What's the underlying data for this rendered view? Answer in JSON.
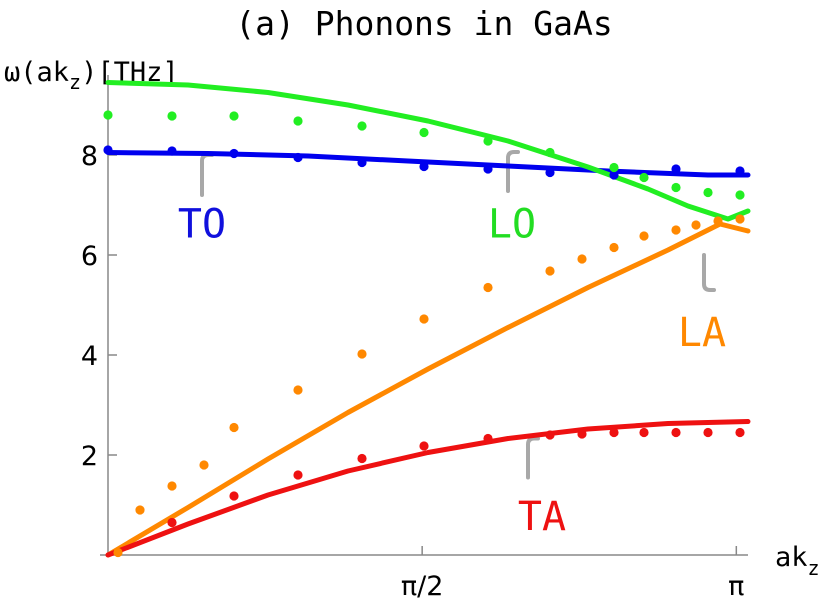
{
  "chart_data": {
    "type": "line",
    "title": "(a) Phonons in GaAs",
    "ylabel": {
      "main": "ω(ak",
      "sub": "z",
      "tail": ")[THz]"
    },
    "xlabel": {
      "main": "ak",
      "sub": "z"
    },
    "xlim": [
      0,
      3.2
    ],
    "ylim": [
      0,
      9.6
    ],
    "x_ticks": [
      {
        "value": 1.5708,
        "label": "π/2"
      },
      {
        "value": 3.1416,
        "label": "π"
      }
    ],
    "y_ticks": [
      {
        "value": 2,
        "label": "2"
      },
      {
        "value": 4,
        "label": "4"
      },
      {
        "value": 6,
        "label": "6"
      },
      {
        "value": 8,
        "label": "8"
      }
    ],
    "grid": false,
    "legend": "none",
    "series": [
      {
        "name": "TO",
        "color": "#0000ee",
        "label_color": "#1010dd",
        "curve": {
          "x": [
            0,
            0.5,
            1.0,
            1.5,
            2.0,
            2.5,
            3.0,
            3.2
          ],
          "y": [
            8.05,
            8.03,
            7.98,
            7.88,
            7.78,
            7.68,
            7.6,
            7.6
          ]
        },
        "points": {
          "x": [
            0,
            0.32,
            0.63,
            0.95,
            1.27,
            1.58,
            1.9,
            2.21,
            2.53,
            2.84,
            3.16
          ],
          "y": [
            8.1,
            8.08,
            8.03,
            7.95,
            7.85,
            7.77,
            7.72,
            7.65,
            7.6,
            7.72,
            7.68
          ]
        },
        "label": {
          "text": "TO",
          "x": 0.47,
          "y": 6.35
        },
        "pointer": {
          "x": 0.47,
          "y_start": 7.2,
          "y_end": 8.0,
          "hook": 0.05
        }
      },
      {
        "name": "LO",
        "color": "#22ee22",
        "label_color": "#22dd22",
        "curve": {
          "x": [
            0,
            0.4,
            0.8,
            1.2,
            1.6,
            2.0,
            2.4,
            2.7,
            2.9,
            3.1,
            3.2
          ],
          "y": [
            9.45,
            9.4,
            9.25,
            9.0,
            8.68,
            8.28,
            7.76,
            7.32,
            6.98,
            6.72,
            6.88
          ]
        },
        "points": {
          "x": [
            0,
            0.32,
            0.63,
            0.95,
            1.27,
            1.58,
            1.9,
            2.21,
            2.53,
            2.68,
            2.84,
            3.0,
            3.16
          ],
          "y": [
            8.8,
            8.78,
            8.78,
            8.68,
            8.58,
            8.45,
            8.28,
            8.05,
            7.75,
            7.55,
            7.35,
            7.25,
            7.2
          ]
        },
        "label": {
          "text": "LO",
          "x": 2.02,
          "y": 6.35
        },
        "pointer": {
          "x": 2.0,
          "y_start": 7.28,
          "y_end": 8.06,
          "hook": 0.05
        }
      },
      {
        "name": "LA",
        "color": "#ff8800",
        "label_color": "#ff8800",
        "curve": {
          "x": [
            0,
            0.4,
            0.8,
            1.2,
            1.6,
            2.0,
            2.4,
            2.8,
            3.06,
            3.2
          ],
          "y": [
            0,
            0.95,
            1.92,
            2.85,
            3.72,
            4.55,
            5.35,
            6.1,
            6.62,
            6.48
          ]
        },
        "points": {
          "x": [
            0.05,
            0.16,
            0.32,
            0.48,
            0.63,
            0.95,
            1.27,
            1.58,
            1.9,
            2.21,
            2.37,
            2.53,
            2.68,
            2.84,
            2.94,
            3.05,
            3.16
          ],
          "y": [
            0.05,
            0.9,
            1.38,
            1.8,
            2.55,
            3.3,
            4.02,
            4.72,
            5.35,
            5.68,
            5.92,
            6.15,
            6.38,
            6.5,
            6.6,
            6.68,
            6.72
          ]
        },
        "label": {
          "text": "LA",
          "x": 2.97,
          "y": 4.18
        },
        "pointer": {
          "x": 2.98,
          "y_start": 6.0,
          "y_end": 5.3,
          "hook": 0.05
        }
      },
      {
        "name": "TA",
        "color": "#ee1111",
        "label_color": "#ee1111",
        "curve": {
          "x": [
            0,
            0.4,
            0.8,
            1.2,
            1.6,
            2.0,
            2.4,
            2.8,
            3.2
          ],
          "y": [
            0,
            0.62,
            1.2,
            1.68,
            2.05,
            2.33,
            2.52,
            2.63,
            2.67
          ]
        },
        "points": {
          "x": [
            0.32,
            0.63,
            0.95,
            1.27,
            1.58,
            1.9,
            2.21,
            2.37,
            2.53,
            2.68,
            2.84,
            3.0,
            3.16
          ],
          "y": [
            0.65,
            1.18,
            1.6,
            1.93,
            2.18,
            2.33,
            2.4,
            2.42,
            2.45,
            2.45,
            2.45,
            2.45,
            2.45
          ]
        },
        "label": {
          "text": "TA",
          "x": 2.17,
          "y": 0.5
        },
        "pointer": {
          "x": 2.1,
          "y_start": 1.55,
          "y_end": 2.33,
          "hook": 0.05
        }
      }
    ]
  }
}
